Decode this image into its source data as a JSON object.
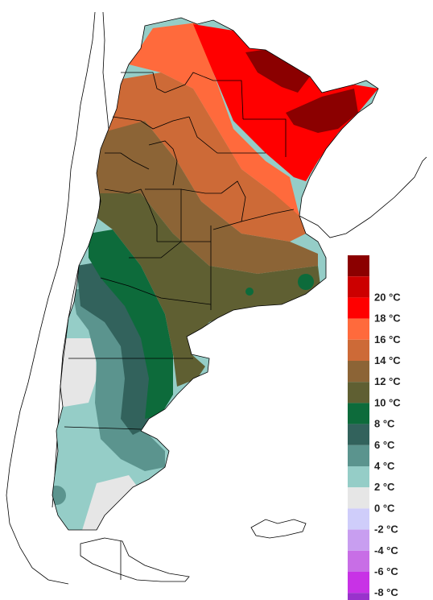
{
  "legend": {
    "items": [
      {
        "color": "#8b0000"
      },
      {
        "color": "#cc0000",
        "label": "20 °C"
      },
      {
        "color": "#ff0000",
        "label": "18 °C"
      },
      {
        "color": "#ff6a3c",
        "label": "16 °C"
      },
      {
        "color": "#cd6a37",
        "label": "14 °C"
      },
      {
        "color": "#8c6436",
        "label": "12 °C"
      },
      {
        "color": "#5f5f32",
        "label": "10 °C"
      },
      {
        "color": "#0d6b3b",
        "label": "8 °C"
      },
      {
        "color": "#32625c",
        "label": "6 °C"
      },
      {
        "color": "#5b948e",
        "label": "4 °C"
      },
      {
        "color": "#95cdc7",
        "label": "2 °C"
      },
      {
        "color": "#e6e6e6",
        "label": "0 °C"
      },
      {
        "color": "#cfcdfa",
        "label": "-2 °C"
      },
      {
        "color": "#c89ef0",
        "label": "-4 °C"
      },
      {
        "color": "#c86ee6",
        "label": "-6 °C"
      },
      {
        "color": "#c832e6",
        "label": "-8 °C"
      },
      {
        "color": "#9932cc"
      }
    ]
  }
}
